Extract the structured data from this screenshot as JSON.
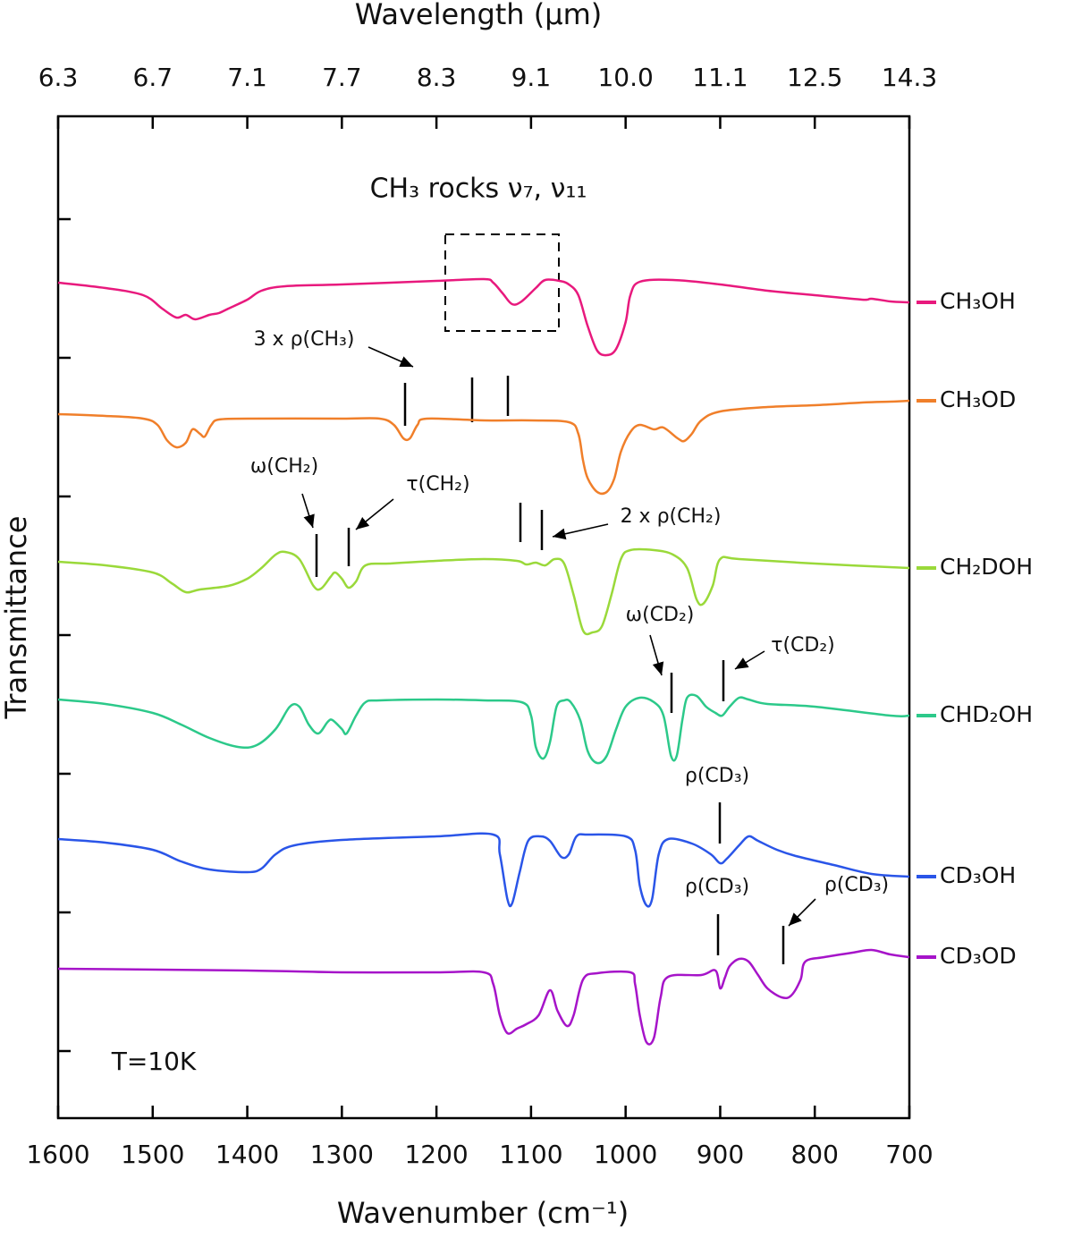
{
  "chart_data": {
    "type": "line",
    "title": "CH₃ rocks ν₇, ν₁₁",
    "xlabel": "Wavenumber (cm⁻¹)",
    "x2label": "Wavelength (µm)",
    "ylabel": "Transmittance",
    "xlim": [
      1600,
      700
    ],
    "xticks": [
      1600,
      1500,
      1400,
      1300,
      1200,
      1100,
      1000,
      900,
      800,
      700
    ],
    "x2ticks": [
      {
        "value": 6.25,
        "label": "6.3"
      },
      {
        "value": 6.6667,
        "label": "6.7"
      },
      {
        "value": 7.1429,
        "label": "7.1"
      },
      {
        "value": 7.6923,
        "label": "7.7"
      },
      {
        "value": 8.3333,
        "label": "8.3"
      },
      {
        "value": 9.0909,
        "label": "9.1"
      },
      {
        "value": 10,
        "label": "10.0"
      },
      {
        "value": 11.111,
        "label": "11.1"
      },
      {
        "value": 12.5,
        "label": "12.5"
      },
      {
        "value": 14.2857,
        "label": "14.3"
      }
    ],
    "ylim": [
      -75,
      1045
    ],
    "yticks": [
      0,
      155,
      310,
      465,
      620,
      775,
      930
    ],
    "annotations": [
      "3 x ρ(CH₃)",
      "ω(CH₂)",
      "τ(CH₂)",
      "2 x ρ(CH₂)",
      "ω(CD₂)",
      "τ(CD₂)",
      "ρ(CD₃)",
      "ρ(CD₃)",
      "ρ(CD₃)",
      "T=10K"
    ],
    "series": [
      {
        "name": "CH₃OH",
        "color": "#e8197d",
        "x": [
          1600,
          1550,
          1510,
          1490,
          1475,
          1465,
          1455,
          1440,
          1430,
          1420,
          1400,
          1385,
          1360,
          1300,
          1200,
          1150,
          1140,
          1130,
          1120,
          1110,
          1095,
          1085,
          1070,
          1060,
          1050,
          1040,
          1030,
          1020,
          1010,
          1000,
          995,
          985,
          950,
          900,
          850,
          800,
          750,
          740,
          720,
          700
        ],
        "values": [
          859,
          853,
          845,
          830,
          820,
          823,
          818,
          823,
          825,
          830,
          840,
          850,
          855,
          857,
          861,
          863,
          859,
          847,
          835,
          838,
          853,
          862,
          861,
          857,
          845,
          810,
          783,
          778,
          785,
          815,
          845,
          860,
          862,
          857,
          850,
          845,
          840,
          841,
          838,
          837
        ]
      },
      {
        "name": "CH₃OD",
        "color": "#f07f2a",
        "x": [
          1600,
          1550,
          1510,
          1495,
          1485,
          1475,
          1465,
          1458,
          1450,
          1445,
          1438,
          1430,
          1400,
          1300,
          1260,
          1245,
          1235,
          1228,
          1220,
          1210,
          1150,
          1100,
          1060,
          1050,
          1045,
          1040,
          1030,
          1020,
          1012,
          1005,
          995,
          985,
          970,
          960,
          945,
          938,
          930,
          920,
          900,
          850,
          800,
          750,
          720,
          700
        ],
        "values": [
          712,
          710,
          707,
          700,
          683,
          675,
          680,
          695,
          690,
          687,
          700,
          706,
          707,
          707,
          707,
          700,
          685,
          685,
          700,
          707,
          705,
          705,
          703,
          690,
          660,
          640,
          625,
          625,
          640,
          670,
          692,
          700,
          695,
          697,
          685,
          682,
          690,
          705,
          715,
          720,
          722,
          725,
          726,
          727
        ]
      },
      {
        "name": "CH₂DOH",
        "color": "#9ad93a",
        "x": [
          1600,
          1550,
          1500,
          1480,
          1465,
          1450,
          1420,
          1400,
          1385,
          1370,
          1360,
          1345,
          1330,
          1322,
          1312,
          1307,
          1300,
          1293,
          1285,
          1275,
          1250,
          1200,
          1150,
          1115,
          1105,
          1095,
          1085,
          1075,
          1065,
          1055,
          1045,
          1035,
          1025,
          1015,
          1005,
          995,
          970,
          950,
          935,
          925,
          918,
          908,
          900,
          880,
          800,
          700
        ],
        "values": [
          547,
          543,
          535,
          523,
          513,
          516,
          520,
          528,
          540,
          555,
          558,
          550,
          520,
          517,
          530,
          535,
          528,
          518,
          525,
          543,
          545,
          548,
          550,
          548,
          544,
          546,
          543,
          550,
          545,
          510,
          470,
          468,
          475,
          510,
          550,
          560,
          560,
          555,
          540,
          505,
          500,
          520,
          550,
          550,
          545,
          540
        ]
      },
      {
        "name": "CHD₂OH",
        "color": "#2cc98a",
        "x": [
          1600,
          1550,
          1500,
          1470,
          1440,
          1410,
          1390,
          1370,
          1355,
          1345,
          1335,
          1325,
          1315,
          1310,
          1300,
          1295,
          1285,
          1275,
          1260,
          1200,
          1150,
          1110,
          1100,
          1095,
          1087,
          1080,
          1073,
          1065,
          1058,
          1048,
          1040,
          1030,
          1020,
          1010,
          1000,
          985,
          970,
          960,
          952,
          946,
          940,
          935,
          925,
          915,
          905,
          898,
          890,
          880,
          870,
          850,
          800,
          720,
          700
        ],
        "values": [
          393,
          388,
          378,
          365,
          350,
          340,
          342,
          360,
          385,
          385,
          365,
          355,
          368,
          370,
          360,
          355,
          375,
          390,
          392,
          393,
          392,
          390,
          375,
          340,
          327,
          345,
          385,
          392,
          390,
          370,
          335,
          322,
          330,
          360,
          385,
          395,
          390,
          375,
          330,
          330,
          370,
          395,
          397,
          385,
          378,
          375,
          385,
          395,
          393,
          388,
          385,
          375,
          375
        ]
      },
      {
        "name": "CD₃OH",
        "color": "#2a55e8",
        "x": [
          1600,
          1550,
          1500,
          1470,
          1440,
          1400,
          1385,
          1370,
          1350,
          1300,
          1200,
          1140,
          1133,
          1125,
          1120,
          1112,
          1103,
          1090,
          1080,
          1068,
          1060,
          1052,
          1040,
          1000,
          990,
          985,
          978,
          972,
          965,
          955,
          930,
          910,
          900,
          893,
          880,
          870,
          860,
          840,
          820,
          780,
          740,
          700
        ],
        "values": [
          237,
          233,
          225,
          212,
          203,
          200,
          204,
          220,
          230,
          236,
          240,
          242,
          220,
          170,
          165,
          200,
          235,
          240,
          235,
          217,
          220,
          240,
          242,
          240,
          225,
          185,
          163,
          170,
          220,
          237,
          232,
          220,
          210,
          215,
          230,
          240,
          235,
          225,
          218,
          208,
          198,
          195
        ]
      },
      {
        "name": "CD₃OD",
        "color": "#a614c9",
        "x": [
          1600,
          1400,
          1300,
          1200,
          1150,
          1140,
          1133,
          1125,
          1115,
          1105,
          1092,
          1080,
          1072,
          1062,
          1055,
          1045,
          1030,
          995,
          990,
          985,
          978,
          970,
          963,
          955,
          920,
          905,
          900,
          895,
          890,
          880,
          870,
          860,
          850,
          835,
          825,
          815,
          810,
          790,
          760,
          740,
          720,
          700
        ],
        "values": [
          92,
          90,
          88,
          88,
          88,
          75,
          40,
          20,
          25,
          30,
          40,
          68,
          45,
          28,
          40,
          80,
          87,
          88,
          75,
          40,
          10,
          15,
          60,
          83,
          85,
          90,
          70,
          82,
          95,
          103,
          100,
          85,
          70,
          60,
          62,
          80,
          100,
          105,
          110,
          113,
          108,
          105
        ]
      }
    ]
  }
}
